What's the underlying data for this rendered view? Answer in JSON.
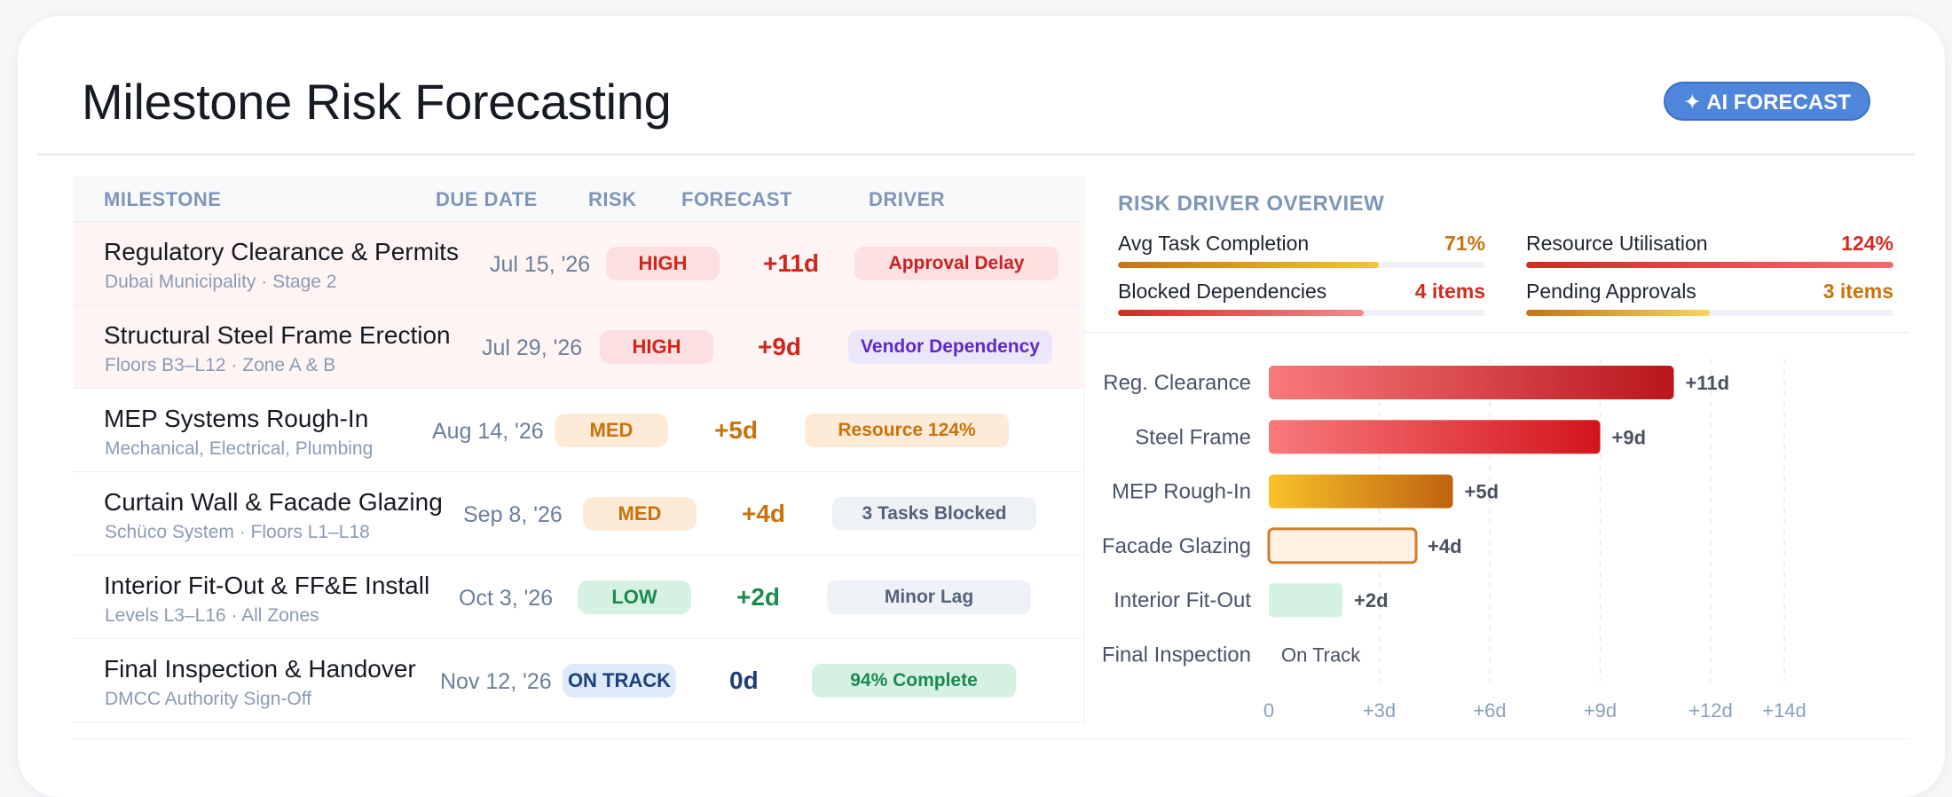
{
  "header": {
    "title": "Milestone Risk Forecasting",
    "badge": "✦ AI FORECAST"
  },
  "table": {
    "columns": {
      "milestone": "MILESTONE",
      "due_date": "DUE DATE",
      "risk": "RISK",
      "forecast": "FORECAST",
      "driver": "DRIVER"
    },
    "rows": [
      {
        "name": "Regulatory Clearance & Permits",
        "sub": "Dubai Municipality · Stage 2",
        "due": "Jul 15, '26",
        "risk": "HIGH",
        "forecast": "+11d",
        "driver": "Approval Delay"
      },
      {
        "name": "Structural Steel Frame Erection",
        "sub": "Floors B3–L12 · Zone A & B",
        "due": "Jul 29, '26",
        "risk": "HIGH",
        "forecast": "+9d",
        "driver": "Vendor Dependency"
      },
      {
        "name": "MEP Systems Rough-In",
        "sub": "Mechanical, Electrical, Plumbing",
        "due": "Aug 14, '26",
        "risk": "MED",
        "forecast": "+5d",
        "driver": "Resource 124%"
      },
      {
        "name": "Curtain Wall & Facade Glazing",
        "sub": "Schüco System · Floors L1–L18",
        "due": "Sep 8, '26",
        "risk": "MED",
        "forecast": "+4d",
        "driver": "3 Tasks Blocked"
      },
      {
        "name": "Interior Fit-Out & FF&E Install",
        "sub": "Levels L3–L16 · All Zones",
        "due": "Oct 3, '26",
        "risk": "LOW",
        "forecast": "+2d",
        "driver": "Minor Lag"
      },
      {
        "name": "Final Inspection & Handover",
        "sub": "DMCC Authority Sign-Off",
        "due": "Nov 12, '26",
        "risk": "ON TRACK",
        "forecast": "0d",
        "driver": "94% Complete"
      }
    ]
  },
  "overview": {
    "title": "RISK DRIVER OVERVIEW",
    "metrics": [
      {
        "label": "Avg Task Completion",
        "value": "71%",
        "level": 0.71,
        "color": "#c9720e"
      },
      {
        "label": "Resource Utilisation",
        "value": "124%",
        "level": 1.0,
        "color": "#d42a20"
      },
      {
        "label": "Blocked Dependencies",
        "value": "4 items",
        "level": 0.67,
        "color": "#d42a20"
      },
      {
        "label": "Pending Approvals",
        "value": "3 items",
        "level": 0.5,
        "color": "#c9720e"
      }
    ]
  },
  "chart_data": {
    "type": "bar",
    "orientation": "horizontal",
    "categories": [
      "Reg. Clearance",
      "Steel Frame",
      "MEP Rough-In",
      "Facade Glazing",
      "Interior Fit-Out",
      "Final Inspection"
    ],
    "values": [
      11,
      9,
      5,
      4,
      2,
      0
    ],
    "value_labels": [
      "+11d",
      "+9d",
      "+5d",
      "+4d",
      "+2d",
      "On Track"
    ],
    "x_ticks": [
      0,
      3,
      6,
      9,
      12,
      14
    ],
    "x_tick_labels": [
      "0",
      "+3d",
      "+6d",
      "+9d",
      "+12d",
      "+14d"
    ],
    "xlim": [
      0,
      15.5
    ],
    "grid": "vertical dashed",
    "title": "",
    "xlabel": "",
    "ylabel": ""
  }
}
